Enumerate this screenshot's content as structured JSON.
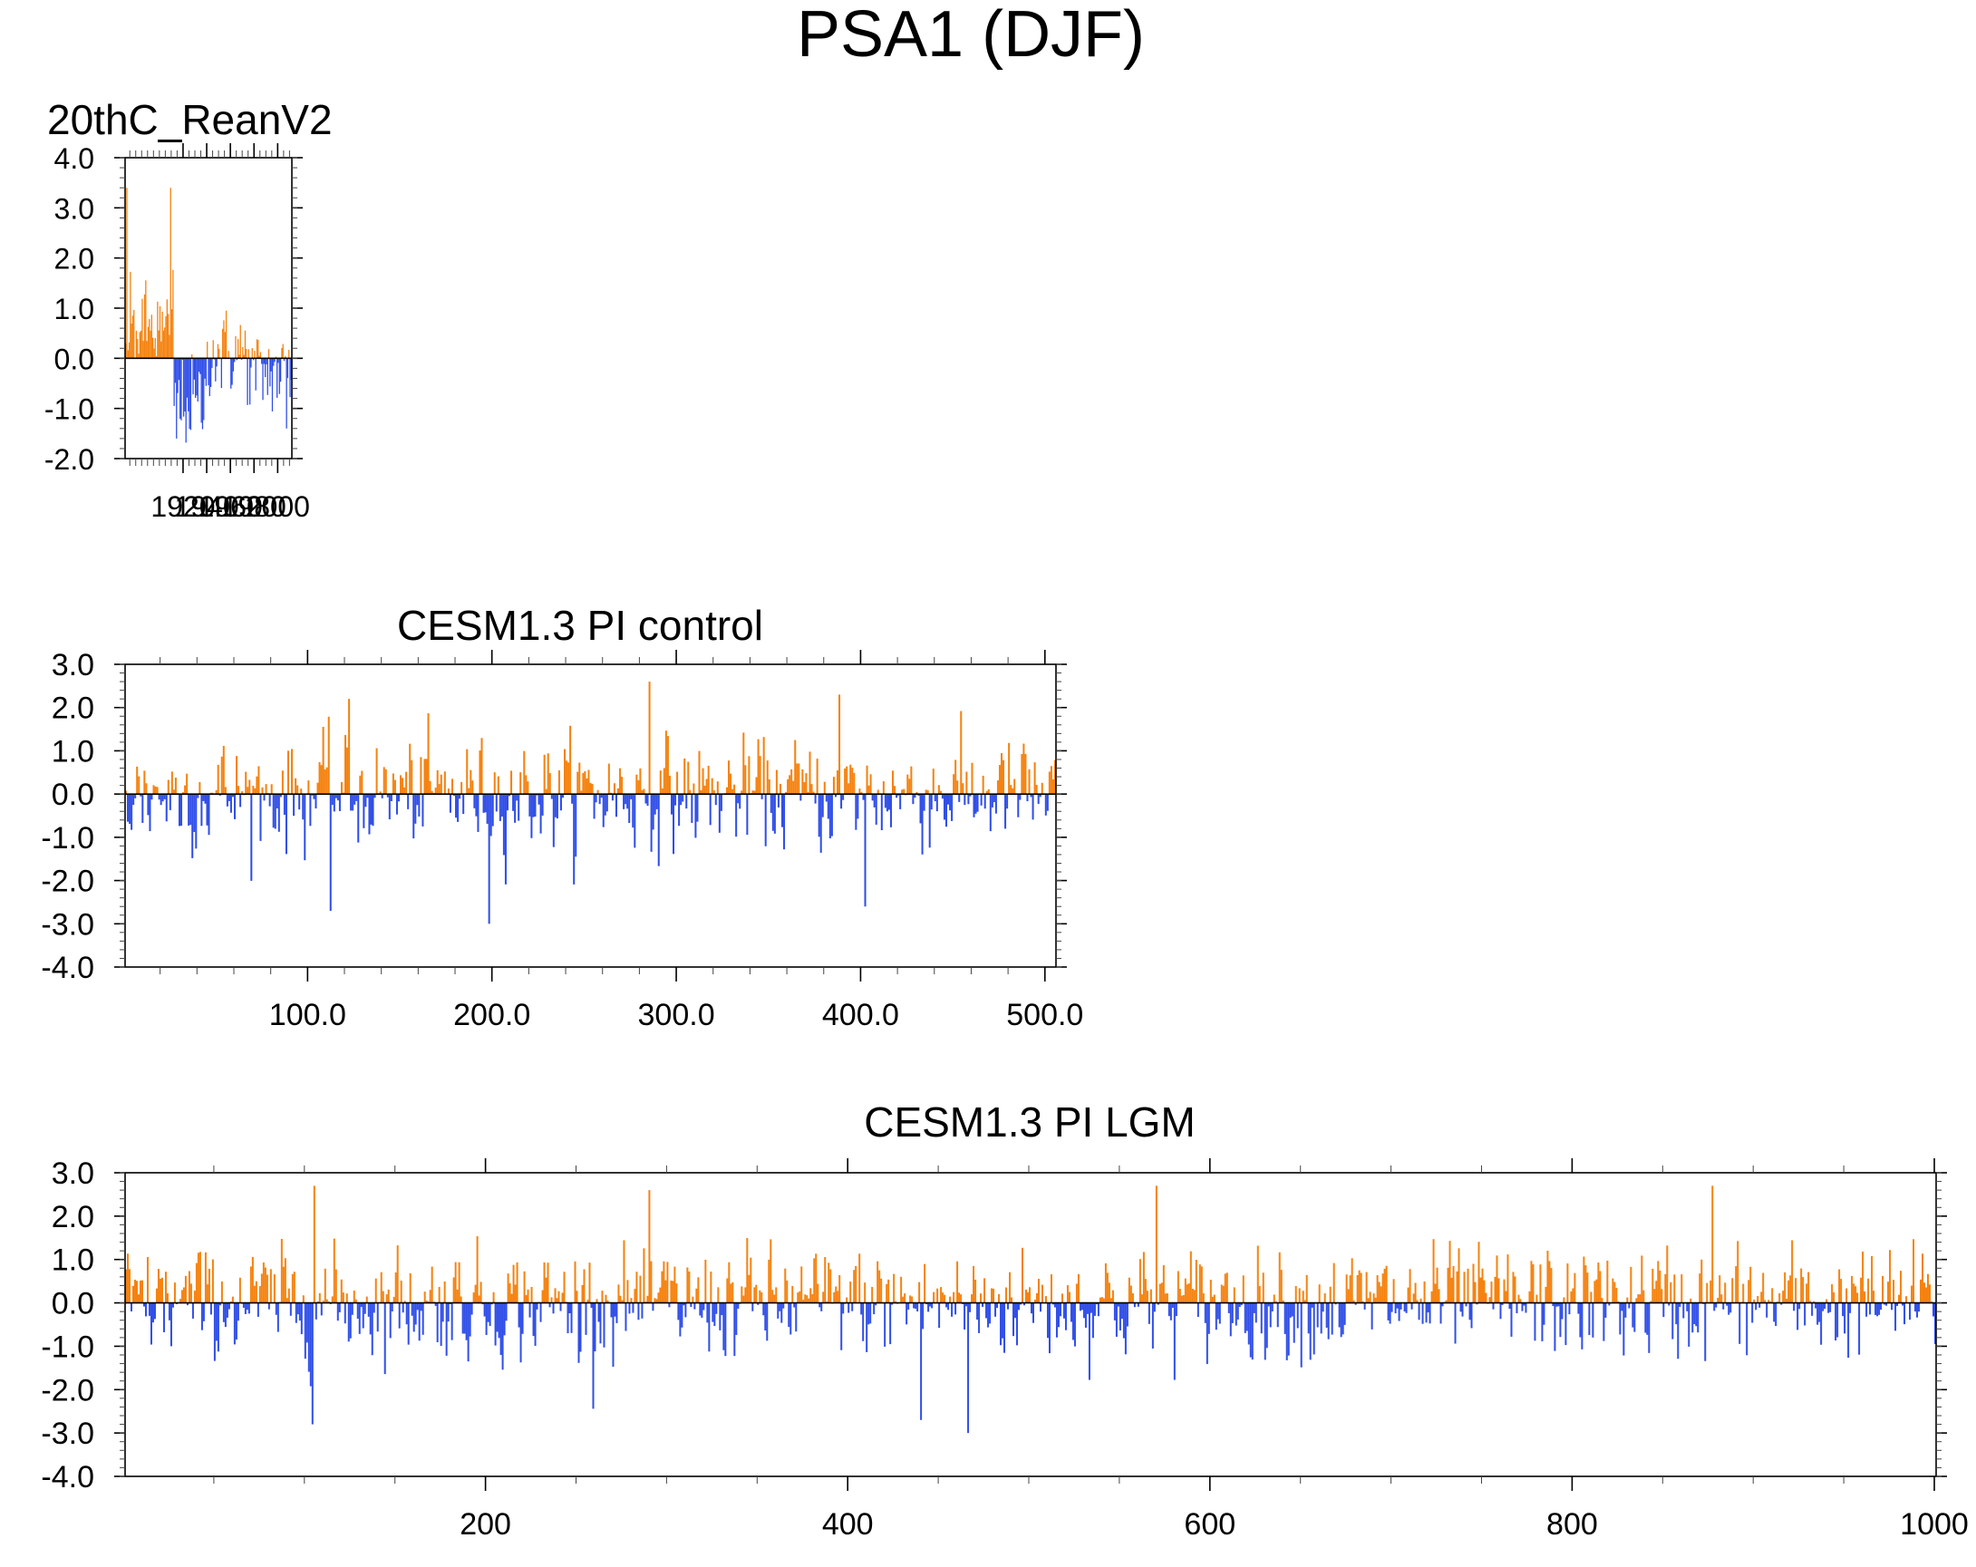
{
  "figure_title": "PSA1 (DJF)",
  "colors": {
    "positive": "#f5820f",
    "negative": "#2f4ee8",
    "axis": "#000000"
  },
  "chart_data": [
    {
      "type": "bar",
      "title": "20thC_ReanV2",
      "xlim": [
        1871,
        2012
      ],
      "ylim": [
        -2.0,
        4.0
      ],
      "x_ticks": [
        "1920",
        "1940",
        "1960",
        "1980",
        "2000"
      ],
      "y_ticks": [
        "4.0",
        "3.0",
        "2.0",
        "1.0",
        "0.0",
        "-1.0",
        "-2.0"
      ],
      "n_points": 141,
      "peak_annotations": [
        {
          "x": 1872,
          "y": 3.4
        },
        {
          "x": 1909,
          "y": 3.4
        },
        {
          "x": 1914,
          "y": -1.6
        },
        {
          "x": 2007,
          "y": -1.4
        }
      ]
    },
    {
      "type": "bar",
      "title": "CESM1.3 PI control",
      "xlim": [
        1,
        506
      ],
      "ylim": [
        -4.0,
        3.0
      ],
      "x_ticks": [
        "100.0",
        "200.0",
        "300.0",
        "400.0",
        "500.0"
      ],
      "y_ticks": [
        "3.0",
        "2.0",
        "1.0",
        "0.0",
        "-1.0",
        "-2.0",
        "-3.0",
        "-4.0"
      ],
      "n_points": 505,
      "peak_annotations": [
        {
          "x": 122,
          "y": 2.2
        },
        {
          "x": 285,
          "y": 2.6
        },
        {
          "x": 388,
          "y": 2.3
        },
        {
          "x": 198,
          "y": -3.0
        },
        {
          "x": 112,
          "y": -2.7
        },
        {
          "x": 402,
          "y": -2.6
        }
      ]
    },
    {
      "type": "bar",
      "title": "CESM1.3 PI LGM",
      "xlim": [
        1,
        1001
      ],
      "ylim": [
        -4.0,
        3.0
      ],
      "x_ticks": [
        "200",
        "400",
        "600",
        "800",
        "1000"
      ],
      "y_ticks": [
        "3.0",
        "2.0",
        "1.0",
        "0.0",
        "-1.0",
        "-2.0",
        "-3.0",
        "-4.0"
      ],
      "n_points": 1000,
      "peak_annotations": [
        {
          "x": 105,
          "y": 2.7
        },
        {
          "x": 290,
          "y": 2.6
        },
        {
          "x": 570,
          "y": 2.7
        },
        {
          "x": 877,
          "y": 2.7
        },
        {
          "x": 440,
          "y": -2.7
        },
        {
          "x": 466,
          "y": -3.0
        },
        {
          "x": 104,
          "y": -2.8
        }
      ]
    }
  ]
}
